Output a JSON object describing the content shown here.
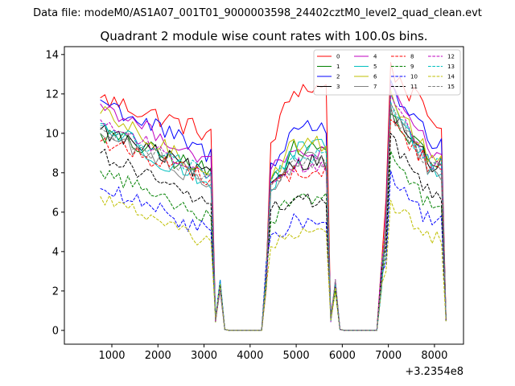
{
  "figure": {
    "suptitle": "Data file: modeM0/AS1A07_001T01_9000003598_24402cztM0_level2_quad_clean.evt",
    "x_offset_label": "+3.2354e8"
  },
  "chart_data": {
    "type": "line",
    "title": "Quadrant 2 module wise count rates with 100.0s bins.",
    "xlabel": "",
    "ylabel": "",
    "xlim": [
      -30,
      8630
    ],
    "ylim": [
      -0.7,
      14.4
    ],
    "xticks": [
      1000,
      2000,
      3000,
      4000,
      5000,
      6000,
      7000,
      8000
    ],
    "xtick_labels": [
      "1000",
      "2000",
      "3000",
      "4000",
      "5000",
      "6000",
      "7000",
      "8000"
    ],
    "yticks": [
      0,
      2,
      4,
      6,
      8,
      10,
      12,
      14
    ],
    "ytick_labels": [
      "0",
      "2",
      "4",
      "6",
      "8",
      "10",
      "12",
      "14"
    ],
    "x_offset": "+3.2354e8",
    "legend_location": "upper right",
    "segments": [
      {
        "start": 750,
        "end": 3250,
        "step": 100
      },
      {
        "start": 4450,
        "end": 5750,
        "step": 100
      },
      {
        "start": 6950,
        "end": 8250,
        "step": 100
      }
    ],
    "series": [
      {
        "name": "0",
        "color": "#ff0000",
        "dashed": false,
        "level": 11.2,
        "noise": 0.55,
        "peak1": 11.8,
        "peak2": 12.3,
        "peak3": 13.6
      },
      {
        "name": "1",
        "color": "#008000",
        "dashed": false,
        "level": 9.0,
        "noise": 0.5,
        "peak1": 10.0,
        "peak2": 9.2,
        "peak3": 11.0
      },
      {
        "name": "2",
        "color": "#0000ff",
        "dashed": false,
        "level": 10.0,
        "noise": 0.55,
        "peak1": 11.7,
        "peak2": 10.3,
        "peak3": 12.7
      },
      {
        "name": "3",
        "color": "#000000",
        "dashed": false,
        "level": 8.8,
        "noise": 0.45,
        "peak1": 10.2,
        "peak2": 8.6,
        "peak3": 11.3
      },
      {
        "name": "4",
        "color": "#bf00bf",
        "dashed": false,
        "level": 9.6,
        "noise": 0.4,
        "peak1": 11.5,
        "peak2": 9.0,
        "peak3": 12.5
      },
      {
        "name": "5",
        "color": "#00bfbf",
        "dashed": false,
        "level": 8.3,
        "noise": 0.6,
        "peak1": 10.5,
        "peak2": 9.1,
        "peak3": 12.0
      },
      {
        "name": "6",
        "color": "#bfbf00",
        "dashed": false,
        "level": 9.0,
        "noise": 0.5,
        "peak1": 11.0,
        "peak2": 9.5,
        "peak3": 12.2
      },
      {
        "name": "7",
        "color": "#808080",
        "dashed": false,
        "level": 8.4,
        "noise": 0.45,
        "peak1": 10.0,
        "peak2": 8.6,
        "peak3": 11.4
      },
      {
        "name": "8",
        "color": "#ff0000",
        "dashed": true,
        "level": 8.7,
        "noise": 0.45,
        "peak1": 9.6,
        "peak2": 8.0,
        "peak3": 10.7
      },
      {
        "name": "9",
        "color": "#008000",
        "dashed": true,
        "level": 6.5,
        "noise": 0.4,
        "peak1": 8.1,
        "peak2": 6.8,
        "peak3": 9.1
      },
      {
        "name": "10",
        "color": "#0000ff",
        "dashed": true,
        "level": 5.7,
        "noise": 0.45,
        "peak1": 7.2,
        "peak2": 5.5,
        "peak3": 8.1
      },
      {
        "name": "11",
        "color": "#000000",
        "dashed": true,
        "level": 7.2,
        "noise": 0.4,
        "peak1": 9.0,
        "peak2": 6.6,
        "peak3": 10.0
      },
      {
        "name": "12",
        "color": "#bf00bf",
        "dashed": true,
        "level": 8.8,
        "noise": 0.4,
        "peak1": 10.7,
        "peak2": 8.4,
        "peak3": 12.0
      },
      {
        "name": "13",
        "color": "#00bfbf",
        "dashed": true,
        "level": 8.9,
        "noise": 0.4,
        "peak1": 10.4,
        "peak2": 8.8,
        "peak3": 11.6
      },
      {
        "name": "14",
        "color": "#bfbf00",
        "dashed": true,
        "level": 5.0,
        "noise": 0.35,
        "peak1": 6.8,
        "peak2": 4.9,
        "peak3": 6.6
      },
      {
        "name": "15",
        "color": "#808080",
        "dashed": true,
        "level": 8.6,
        "noise": 0.4,
        "peak1": 10.3,
        "peak2": 8.5,
        "peak3": 11.5
      }
    ]
  }
}
